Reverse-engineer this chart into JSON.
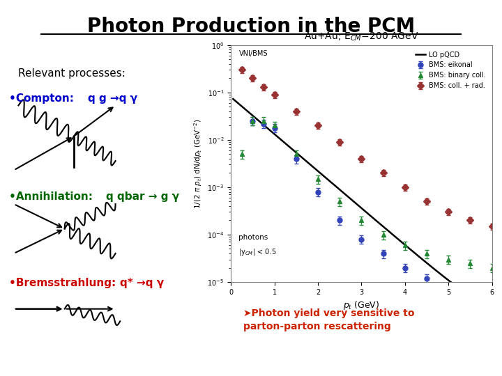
{
  "title": "Photon Production in the PCM",
  "background_color": "#ffffff",
  "relevant_processes_label": "Relevant processes:",
  "compton_label": "Compton: ",
  "compton_formula": "q g →q γ",
  "compton_color": "#0000cc",
  "annihilation_label": "Annihilation: ",
  "annihilation_formula": "q qbar → g γ",
  "annihilation_color": "#006600",
  "bremsstrahlung_label": "Bremsstrahlung: ",
  "bremsstrahlung_formula": "q* →q γ",
  "bremsstrahlung_color": "#cc0000",
  "plot_title": "Au+Au; E$_{CM}$=200 AGeV",
  "xlabel": "$p_t$ (GeV)",
  "ylabel": "1/(2 $\\pi$ $p_t$) dN/d$p_t$ (GeV$^{-2}$)",
  "annotation1": "photons",
  "annotation2": "|y$_{CM}$| < 0.5",
  "vni_label": "VNI/BMS",
  "bottom_text": "➤Photon yield very sensitive to\nparton-parton rescattering",
  "bottom_text_color": "#cc2200",
  "bottom_box_color": "#ddeeff"
}
